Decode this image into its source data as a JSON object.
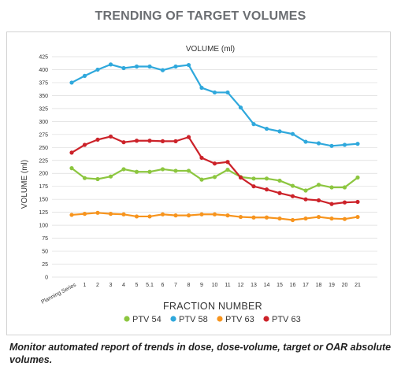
{
  "header": {
    "title": "TRENDING OF TARGET VOLUMES"
  },
  "caption": "Monitor automated report of trends in dose, dose-volume, target or OAR absolute volumes.",
  "chart_data": {
    "type": "line",
    "title": "VOLUME (ml)",
    "xlabel": "FRACTION NUMBER",
    "ylabel": "VOLUME (ml)",
    "ylim": [
      0,
      425
    ],
    "yticks": [
      0,
      25,
      50,
      75,
      100,
      125,
      150,
      175,
      200,
      225,
      250,
      275,
      300,
      325,
      350,
      375,
      400,
      425
    ],
    "grid": true,
    "legend_position": "bottom",
    "categories": [
      "Planning Series",
      "1",
      "2",
      "3",
      "4",
      "5",
      "5.1",
      "6",
      "7",
      "8",
      "9",
      "10",
      "11",
      "12",
      "13",
      "14",
      "15",
      "16",
      "17",
      "18",
      "19",
      "20",
      "21"
    ],
    "series": [
      {
        "name": "PTV 54",
        "color": "#8cc63f",
        "values": [
          210,
          191,
          189,
          194,
          208,
          203,
          203,
          208,
          205,
          205,
          188,
          193,
          207,
          193,
          190,
          190,
          186,
          176,
          167,
          178,
          173,
          173,
          192
        ]
      },
      {
        "name": "PTV 58",
        "color": "#2fa8dc",
        "values": [
          375,
          388,
          400,
          410,
          403,
          406,
          406,
          399,
          406,
          409,
          365,
          356,
          356,
          327,
          295,
          286,
          281,
          276,
          261,
          258,
          253,
          255,
          257
        ]
      },
      {
        "name": "PTV 63",
        "color": "#f7941d",
        "values": [
          120,
          122,
          124,
          122,
          121,
          117,
          117,
          121,
          119,
          119,
          121,
          121,
          119,
          116,
          115,
          115,
          113,
          110,
          113,
          116,
          113,
          112,
          116
        ]
      },
      {
        "name": "PTV 63",
        "color": "#cc2229",
        "values": [
          240,
          255,
          265,
          271,
          260,
          263,
          263,
          262,
          262,
          270,
          230,
          219,
          222,
          192,
          175,
          169,
          162,
          156,
          150,
          148,
          141,
          144,
          145
        ]
      }
    ]
  }
}
